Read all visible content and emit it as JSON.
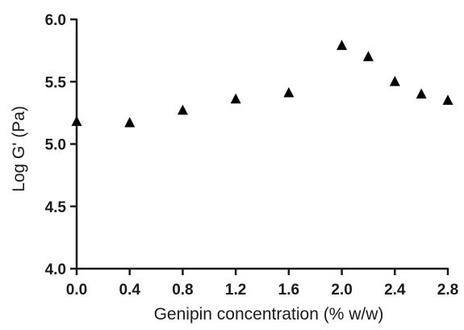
{
  "chart_data": {
    "type": "scatter",
    "title": "",
    "xlabel": "Genipin concentration (% w/w)",
    "ylabel": "Log G' (Pa)",
    "xlim": [
      0.0,
      2.8
    ],
    "ylim": [
      4.0,
      6.0
    ],
    "x_ticks": [
      "0.0",
      "0.4",
      "0.8",
      "1.2",
      "1.6",
      "2.0",
      "2.4",
      "2.8"
    ],
    "y_ticks": [
      "4.0",
      "4.5",
      "5.0",
      "5.5",
      "6.0"
    ],
    "grid": false,
    "marker": "triangle",
    "marker_color": "#000000",
    "series": [
      {
        "x": [
          0.0,
          0.4,
          0.8,
          1.2,
          1.6,
          2.0,
          2.2,
          2.4,
          2.6,
          2.8
        ],
        "y": [
          5.18,
          5.17,
          5.27,
          5.36,
          5.41,
          5.79,
          5.7,
          5.5,
          5.4,
          5.35
        ]
      }
    ]
  }
}
